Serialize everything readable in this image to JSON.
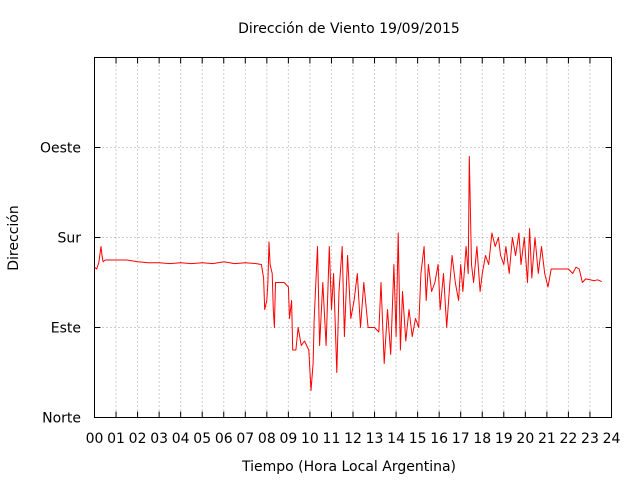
{
  "chart_data": {
    "type": "line",
    "title": "Dirección de Viento 19/09/2015",
    "xlabel": "Tiempo (Hora Local Argentina)",
    "ylabel": "Dirección",
    "xlim": [
      0,
      24
    ],
    "ylim": [
      0,
      4
    ],
    "x_ticks": [
      "00",
      "01",
      "02",
      "03",
      "04",
      "05",
      "06",
      "07",
      "08",
      "09",
      "10",
      "11",
      "12",
      "13",
      "14",
      "15",
      "16",
      "17",
      "18",
      "19",
      "20",
      "21",
      "22",
      "23",
      "24"
    ],
    "y_ticks": [
      {
        "value": 0,
        "label": "Norte"
      },
      {
        "value": 1,
        "label": "Este"
      },
      {
        "value": 2,
        "label": "Sur"
      },
      {
        "value": 3,
        "label": "Oeste"
      }
    ],
    "grid": true,
    "legend": "none",
    "series": [
      {
        "color": "#ff0000",
        "points": [
          [
            0.0,
            1.67
          ],
          [
            0.1,
            1.65
          ],
          [
            0.2,
            1.72
          ],
          [
            0.3,
            1.9
          ],
          [
            0.35,
            1.8
          ],
          [
            0.4,
            1.73
          ],
          [
            0.5,
            1.75
          ],
          [
            1.0,
            1.75
          ],
          [
            1.5,
            1.75
          ],
          [
            2.0,
            1.73
          ],
          [
            2.5,
            1.72
          ],
          [
            3.0,
            1.72
          ],
          [
            3.5,
            1.71
          ],
          [
            4.0,
            1.72
          ],
          [
            4.5,
            1.71
          ],
          [
            5.0,
            1.72
          ],
          [
            5.5,
            1.71
          ],
          [
            6.0,
            1.73
          ],
          [
            6.5,
            1.71
          ],
          [
            7.0,
            1.72
          ],
          [
            7.5,
            1.71
          ],
          [
            7.75,
            1.7
          ],
          [
            7.85,
            1.55
          ],
          [
            7.9,
            1.2
          ],
          [
            8.0,
            1.3
          ],
          [
            8.05,
            1.5
          ],
          [
            8.1,
            1.95
          ],
          [
            8.15,
            1.7
          ],
          [
            8.25,
            1.6
          ],
          [
            8.3,
            1.2
          ],
          [
            8.35,
            1.0
          ],
          [
            8.4,
            1.5
          ],
          [
            8.5,
            1.5
          ],
          [
            8.8,
            1.5
          ],
          [
            9.0,
            1.45
          ],
          [
            9.05,
            1.1
          ],
          [
            9.15,
            1.3
          ],
          [
            9.2,
            0.75
          ],
          [
            9.35,
            0.75
          ],
          [
            9.45,
            1.0
          ],
          [
            9.6,
            0.8
          ],
          [
            9.75,
            0.85
          ],
          [
            9.95,
            0.75
          ],
          [
            10.05,
            0.3
          ],
          [
            10.15,
            0.6
          ],
          [
            10.2,
            1.1
          ],
          [
            10.35,
            1.9
          ],
          [
            10.45,
            0.8
          ],
          [
            10.6,
            1.5
          ],
          [
            10.75,
            0.8
          ],
          [
            10.9,
            1.9
          ],
          [
            11.0,
            1.2
          ],
          [
            11.1,
            1.6
          ],
          [
            11.25,
            0.5
          ],
          [
            11.35,
            1.4
          ],
          [
            11.5,
            1.9
          ],
          [
            11.6,
            0.9
          ],
          [
            11.75,
            1.8
          ],
          [
            11.9,
            1.1
          ],
          [
            12.05,
            1.3
          ],
          [
            12.2,
            1.6
          ],
          [
            12.35,
            1.0
          ],
          [
            12.5,
            1.5
          ],
          [
            12.7,
            1.0
          ],
          [
            13.0,
            1.0
          ],
          [
            13.2,
            0.95
          ],
          [
            13.3,
            1.5
          ],
          [
            13.45,
            0.6
          ],
          [
            13.6,
            1.2
          ],
          [
            13.75,
            0.7
          ],
          [
            13.9,
            1.7
          ],
          [
            14.0,
            0.9
          ],
          [
            14.1,
            2.05
          ],
          [
            14.2,
            0.75
          ],
          [
            14.3,
            1.4
          ],
          [
            14.45,
            0.85
          ],
          [
            14.6,
            1.2
          ],
          [
            14.75,
            0.9
          ],
          [
            14.9,
            1.1
          ],
          [
            15.05,
            1.0
          ],
          [
            15.15,
            1.6
          ],
          [
            15.3,
            1.9
          ],
          [
            15.4,
            1.3
          ],
          [
            15.5,
            1.7
          ],
          [
            15.65,
            1.4
          ],
          [
            15.8,
            1.5
          ],
          [
            15.95,
            1.7
          ],
          [
            16.05,
            1.2
          ],
          [
            16.2,
            1.6
          ],
          [
            16.35,
            1.0
          ],
          [
            16.5,
            1.5
          ],
          [
            16.6,
            1.8
          ],
          [
            16.75,
            1.5
          ],
          [
            16.9,
            1.3
          ],
          [
            17.0,
            1.7
          ],
          [
            17.1,
            1.4
          ],
          [
            17.25,
            1.9
          ],
          [
            17.35,
            1.6
          ],
          [
            17.4,
            2.9
          ],
          [
            17.5,
            1.7
          ],
          [
            17.6,
            1.5
          ],
          [
            17.75,
            1.9
          ],
          [
            17.9,
            1.4
          ],
          [
            18.0,
            1.6
          ],
          [
            18.15,
            1.8
          ],
          [
            18.3,
            1.7
          ],
          [
            18.45,
            2.05
          ],
          [
            18.6,
            1.9
          ],
          [
            18.75,
            2.0
          ],
          [
            18.85,
            1.8
          ],
          [
            19.0,
            1.7
          ],
          [
            19.1,
            1.9
          ],
          [
            19.25,
            1.6
          ],
          [
            19.4,
            2.0
          ],
          [
            19.55,
            1.8
          ],
          [
            19.7,
            2.05
          ],
          [
            19.8,
            1.7
          ],
          [
            19.95,
            2.0
          ],
          [
            20.1,
            1.5
          ],
          [
            20.2,
            2.1
          ],
          [
            20.3,
            1.55
          ],
          [
            20.45,
            2.0
          ],
          [
            20.6,
            1.6
          ],
          [
            20.75,
            1.9
          ],
          [
            20.9,
            1.6
          ],
          [
            21.05,
            1.45
          ],
          [
            21.2,
            1.65
          ],
          [
            21.5,
            1.65
          ],
          [
            22.0,
            1.65
          ],
          [
            22.2,
            1.6
          ],
          [
            22.35,
            1.67
          ],
          [
            22.5,
            1.65
          ],
          [
            22.65,
            1.5
          ],
          [
            22.8,
            1.54
          ],
          [
            23.0,
            1.53
          ],
          [
            23.2,
            1.52
          ],
          [
            23.35,
            1.53
          ],
          [
            23.55,
            1.51
          ]
        ]
      }
    ]
  }
}
